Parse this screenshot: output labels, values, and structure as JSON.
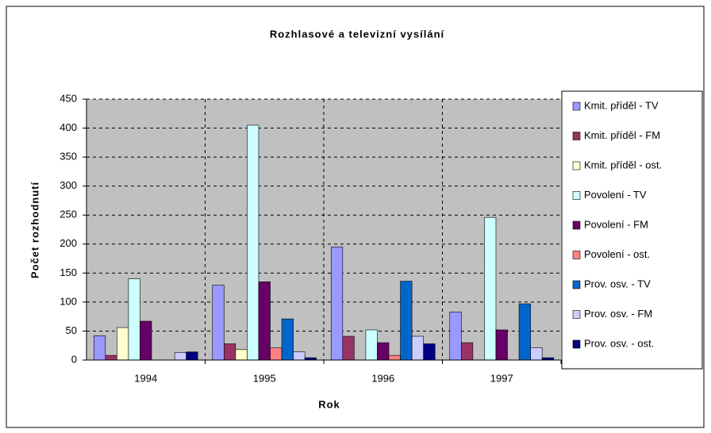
{
  "chart_data": {
    "type": "bar",
    "title": "Rozhlasové a televizní vysílání",
    "x_label": "Rok",
    "y_label": "Počet rozhodnutí",
    "categories": [
      "1994",
      "1995",
      "1996",
      "1997"
    ],
    "series": [
      {
        "name": "Kmit. příděl - TV",
        "color": "#9999ff",
        "values": [
          42,
          129,
          195,
          83
        ]
      },
      {
        "name": "Kmit. příděl - FM",
        "color": "#993366",
        "values": [
          8,
          28,
          41,
          30
        ]
      },
      {
        "name": "Kmit. příděl - ost.",
        "color": "#ffffcc",
        "values": [
          56,
          18,
          0,
          0
        ]
      },
      {
        "name": "Povolení - TV",
        "color": "#ccffff",
        "values": [
          140,
          405,
          52,
          246
        ]
      },
      {
        "name": "Povolení - FM",
        "color": "#660066",
        "values": [
          67,
          135,
          30,
          52
        ]
      },
      {
        "name": "Povolení - ost.",
        "color": "#ff8080",
        "values": [
          0,
          21,
          8,
          0
        ]
      },
      {
        "name": "Prov. osv. - TV",
        "color": "#0066cc",
        "values": [
          0,
          71,
          136,
          97
        ]
      },
      {
        "name": "Prov. osv. - FM",
        "color": "#ccccff",
        "values": [
          13,
          14,
          41,
          21
        ]
      },
      {
        "name": "Prov. osv. - ost.",
        "color": "#000080",
        "values": [
          14,
          4,
          28,
          4
        ]
      }
    ],
    "ylim": [
      0,
      450
    ],
    "yticks": [
      0,
      50,
      100,
      150,
      200,
      250,
      300,
      350,
      400,
      450
    ],
    "grid": true,
    "legend": "right"
  }
}
